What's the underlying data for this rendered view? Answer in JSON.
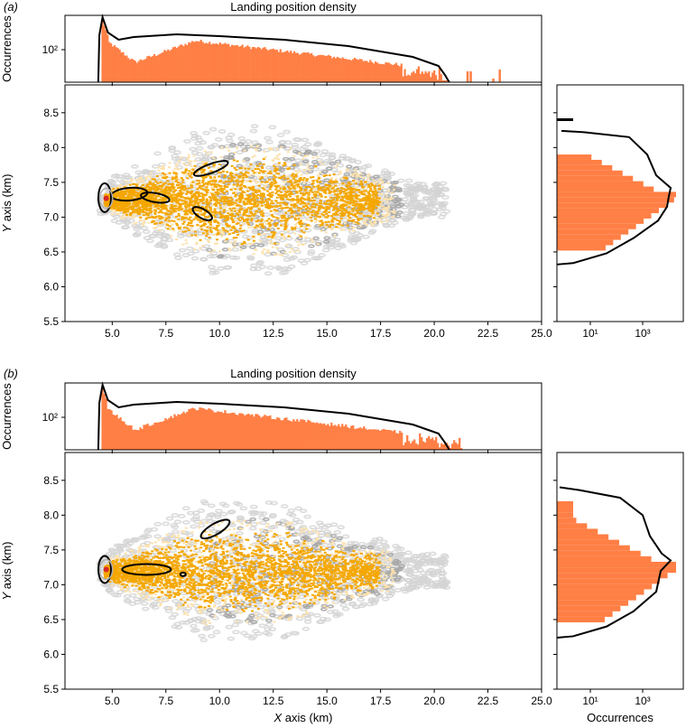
{
  "chart_data": [
    {
      "panel_label": "(a)",
      "title": "Landing position density",
      "type": "heatmap",
      "xlabel": "",
      "ylabel": "Y axis (km)",
      "xlim": [
        2.8,
        25.0
      ],
      "ylim": [
        5.5,
        8.9
      ],
      "xticks": [
        "5.0",
        "7.5",
        "10.0",
        "12.5",
        "15.0",
        "17.5",
        "20.0",
        "22.5",
        "25.0"
      ],
      "yticks": [
        "5.5",
        "6.0",
        "6.5",
        "7.0",
        "7.5",
        "8.0",
        "8.5"
      ],
      "top_hist": {
        "ylabel": "Occurrences",
        "scale": "log",
        "tick": "10²"
      },
      "right_hist": {
        "xlabel": "",
        "scale": "log",
        "ticks": [
          "10¹",
          "10³"
        ]
      },
      "density_core": {
        "x_start": 4.5,
        "x_end": 18.5,
        "y_center": 7.25,
        "half_width_max": 0.75
      },
      "contours_black": "compact clusters near 4.5–10 km",
      "colors": {
        "hist": "#ff7f45",
        "density": "#f5a700",
        "density_light": "#fde2ad",
        "contour_light": "#d3d3d3",
        "contour_mid": "#a6a6a6",
        "contour_black": "#000000",
        "source": "#d62728"
      }
    },
    {
      "panel_label": "(b)",
      "title": "Landing position density",
      "type": "heatmap",
      "xlabel": "X axis (km)",
      "ylabel": "Y axis (km)",
      "xlim": [
        2.8,
        25.0
      ],
      "ylim": [
        5.5,
        8.9
      ],
      "xticks": [
        "5.0",
        "7.5",
        "10.0",
        "12.5",
        "15.0",
        "17.5",
        "20.0",
        "22.5",
        "25.0"
      ],
      "yticks": [
        "5.5",
        "6.0",
        "6.5",
        "7.0",
        "7.5",
        "8.0",
        "8.5"
      ],
      "top_hist": {
        "ylabel": "Occurrences",
        "scale": "log",
        "tick": "10²"
      },
      "right_hist": {
        "xlabel": "Occurrences",
        "scale": "log",
        "ticks": [
          "10¹",
          "10³"
        ]
      },
      "density_core": {
        "x_start": 4.5,
        "x_end": 17.0,
        "y_center": 7.2,
        "half_width_max": 0.7
      },
      "contours_black": "compact clusters near 4.5–10.5 km",
      "colors": {
        "hist": "#ff7f45",
        "density": "#f5a700",
        "density_light": "#fde2ad",
        "contour_light": "#d3d3d3",
        "contour_mid": "#a6a6a6",
        "contour_black": "#000000",
        "source": "#d62728"
      }
    }
  ]
}
